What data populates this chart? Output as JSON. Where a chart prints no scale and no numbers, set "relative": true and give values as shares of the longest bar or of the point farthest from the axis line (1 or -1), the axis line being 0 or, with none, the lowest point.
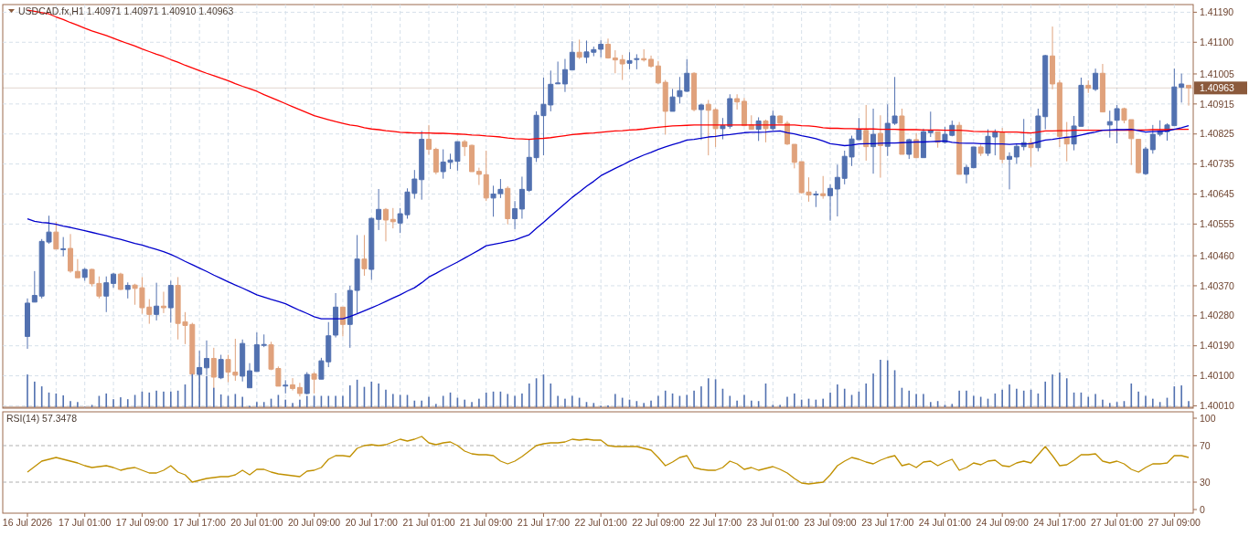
{
  "chart_data": [
    {
      "type": "candlestick",
      "title": "USDCAD.fx,H1 1.40971 1.40971 1.40910 1.40963",
      "tick_labels": "y",
      "grid": true,
      "colors": [
        "#5271b0",
        "#5271b0",
        "#5271b0",
        "#5271b0",
        "#e0a27c",
        "#5271b0",
        "#e0a27c",
        "#e0a27c",
        "#5271b0",
        "#e0a27c",
        "#e0a27c",
        "#5271b0",
        "#5271b0",
        "#e0a27c",
        "#5271b0",
        "#e0a27c",
        "#e0a27c",
        "#e0a27c",
        "#5271b0",
        "#e0a27c",
        "#5271b0",
        "#e0a27c",
        "#e0a27c",
        "#e0a27c",
        "#5271b0",
        "#5271b0",
        "#e0a27c",
        "#5271b0",
        "#e0a27c",
        "#e0a27c",
        "#5271b0",
        "#5271b0",
        "#5271b0",
        "#5271b0",
        "#e0a27c",
        "#e0a27c",
        "#5271b0",
        "#e0a27c",
        "#e0a27c",
        "#5271b0",
        "#e0a27c",
        "#5271b0",
        "#5271b0",
        "#5271b0",
        "#e0a27c",
        "#5271b0",
        "#5271b0",
        "#e0a27c",
        "#5271b0",
        "#5271b0",
        "#e0a27c",
        "#e0a27c",
        "#5271b0",
        "#5271b0",
        "#5271b0",
        "#5271b0",
        "#e0a27c",
        "#e0a27c",
        "#5271b0",
        "#5271b0",
        "#5271b0",
        "#e0a27c",
        "#e0a27c",
        "#e0a27c",
        "#e0a27c",
        "#5271b0",
        "#5271b0",
        "#e0a27c",
        "#5271b0",
        "#5271b0",
        "#5271b0",
        "#5271b0",
        "#5271b0",
        "#5271b0",
        "#5271b0",
        "#5271b0",
        "#5271b0",
        "#e0a27c",
        "#5271b0",
        "#5271b0",
        "#5271b0",
        "#e0a27c",
        "#e0a27c",
        "#e0a27c",
        "#5271b0",
        "#5271b0",
        "#e0a27c",
        "#e0a27c",
        "#e0a27c",
        "#e0a27c",
        "#5271b0",
        "#5271b0",
        "#5271b0",
        "#e0a27c",
        "#5271b0",
        "#e0a27c",
        "#e0a27c",
        "#5271b0",
        "#5271b0",
        "#e0a27c",
        "#e0a27c",
        "#e0a27c",
        "#5271b0",
        "#e0a27c",
        "#5271b0",
        "#e0a27c",
        "#e0a27c",
        "#e0a27c",
        "#e0a27c",
        "#e0a27c",
        "#5271b0",
        "#e0a27c",
        "#5271b0",
        "#5271b0",
        "#5271b0",
        "#5271b0",
        "#5271b0",
        "#e0a27c",
        "#5271b0",
        "#e0a27c",
        "#5271b0",
        "#5271b0",
        "#e0a27c",
        "#5271b0",
        "#e0a27c",
        "#5271b0",
        "#5271b0",
        "#e0a27c",
        "#5271b0",
        "#5271b0",
        "#e0a27c",
        "#5271b0",
        "#5271b0",
        "#e0a27c",
        "#5271b0",
        "#5271b0",
        "#e0a27c",
        "#5271b0",
        "#5271b0",
        "#5271b0",
        "#e0a27c",
        "#5271b0",
        "#5271b0",
        "#e0a27c",
        "#e0a27c",
        "#e0a27c",
        "#5271b0",
        "#5271b0",
        "#e0a27c",
        "#5271b0",
        "#e0a27c",
        "#5271b0",
        "#5271b0",
        "#e0a27c",
        "#e0a27c",
        "#e0a27c",
        "#5271b0",
        "#5271b0",
        "#5271b0",
        "#5271b0",
        "#5271b0",
        "#5271b0",
        "#e0a27c"
      ],
      "categories": [
        null,
        null,
        null,
        null,
        null,
        null,
        null,
        null,
        null,
        null,
        null,
        null,
        null,
        null,
        null,
        null,
        null,
        null,
        null,
        null,
        null,
        null,
        null,
        null,
        null,
        null,
        null,
        null,
        null,
        null,
        null,
        null,
        null,
        null,
        null,
        null,
        null,
        null,
        null,
        null,
        null,
        null,
        null,
        null,
        null,
        null,
        null,
        null,
        null,
        null,
        null,
        null,
        null,
        null,
        null,
        null,
        null,
        null,
        null,
        null,
        null,
        null,
        null,
        null,
        null,
        null,
        null,
        null,
        null,
        null,
        null,
        null,
        null,
        null,
        null,
        null,
        null,
        null,
        null,
        null,
        null,
        null,
        null,
        null,
        null,
        null,
        null,
        null,
        null,
        null,
        null,
        null,
        null,
        null,
        null,
        null,
        null,
        null,
        null,
        null,
        null,
        null,
        null,
        null,
        null,
        null,
        null,
        null,
        null,
        null,
        null,
        null,
        null,
        null,
        null,
        null,
        null,
        null,
        null,
        null,
        null,
        null,
        null,
        null,
        null,
        null,
        null,
        null,
        null,
        null,
        null,
        null,
        null,
        null,
        null,
        null,
        null,
        null,
        null,
        null,
        null,
        null,
        null,
        null,
        null,
        null,
        null,
        null,
        null,
        null,
        null,
        null,
        null,
        null,
        null,
        null,
        null,
        null,
        null,
        null,
        null,
        null,
        null
      ],
      "ylim": [
        1.40003,
        1.41213
      ],
      "yticks": [
        {
          "value": 1.4119,
          "label": "1.41190"
        },
        {
          "value": 1.411,
          "label": "1.41100"
        },
        1.41005,
        1.40915,
        1.40825,
        1.40735,
        1.40645,
        1.40555,
        {
          "value": 1.4046,
          "label": "1.40460"
        },
        {
          "value": 1.4037,
          "label": "1.40370"
        },
        {
          "value": 1.4028,
          "label": "1.40280"
        },
        {
          "value": 1.4019,
          "label": "1.40190"
        },
        {
          "value": 1.401,
          "label": "1.40100"
        },
        {
          "value": 1.4001,
          "label": "1.40010"
        }
      ],
      "ref_lines": [
        {
          "axis": "y",
          "value": 1.40963,
          "label": "1.40963",
          "color": "#8b5a3c"
        }
      ],
      "ohlc": [
        [
          1.40218,
          1.40332,
          1.40181,
          1.40318
        ],
        [
          1.40321,
          1.40414,
          1.40321,
          1.40341
        ],
        [
          1.40339,
          1.4051,
          1.40332,
          1.40503
        ],
        [
          1.40501,
          1.4058,
          1.40496,
          1.40531
        ],
        [
          1.40531,
          1.40562,
          1.4048,
          1.4048
        ],
        [
          1.40479,
          1.40516,
          1.40458,
          1.40481
        ],
        [
          1.40482,
          1.40525,
          1.40409,
          1.40414
        ],
        [
          1.40413,
          1.4045,
          1.40394,
          1.40394
        ],
        [
          1.40395,
          1.40423,
          1.40385,
          1.40419
        ],
        [
          1.40419,
          1.40421,
          1.40368,
          1.40376
        ],
        [
          1.40377,
          1.40398,
          1.40332,
          1.40339
        ],
        [
          1.40339,
          1.40398,
          1.40291,
          1.40379
        ],
        [
          1.40377,
          1.40409,
          1.40364,
          1.40405
        ],
        [
          1.40405,
          1.40409,
          1.40357,
          1.40359
        ],
        [
          1.40359,
          1.4038,
          1.40332,
          1.40371
        ],
        [
          1.40372,
          1.40376,
          1.40313,
          1.40362
        ],
        [
          1.40364,
          1.40396,
          1.40286,
          1.40304
        ],
        [
          1.40306,
          1.4033,
          1.40256,
          1.40284
        ],
        [
          1.40284,
          1.40379,
          1.40266,
          1.40309
        ],
        [
          1.40309,
          1.40352,
          1.40288,
          1.40304
        ],
        [
          1.40304,
          1.40385,
          1.40259,
          1.40371
        ],
        [
          1.40371,
          1.40396,
          1.40209,
          1.40257
        ],
        [
          1.40262,
          1.40291,
          1.40195,
          1.40251
        ],
        [
          1.40254,
          1.40259,
          1.40104,
          1.40105
        ],
        [
          1.40104,
          1.40175,
          1.40102,
          1.40125
        ],
        [
          1.40124,
          1.40206,
          1.40102,
          1.40152
        ],
        [
          1.40152,
          1.40184,
          1.40062,
          1.40096
        ],
        [
          1.40094,
          1.40163,
          1.4009,
          1.40149
        ],
        [
          1.40149,
          1.40163,
          1.40081,
          1.40111
        ],
        [
          1.40111,
          1.40211,
          1.40085,
          1.40102
        ],
        [
          1.40099,
          1.40209,
          1.40083,
          1.40197
        ],
        [
          1.40064,
          1.40138,
          1.40064,
          1.40115
        ],
        [
          1.40113,
          1.4023,
          1.40113,
          1.40193
        ],
        [
          1.40192,
          1.40224,
          1.40186,
          1.40194
        ],
        [
          1.40193,
          1.40202,
          1.40117,
          1.4012
        ],
        [
          1.40122,
          1.40128,
          1.40069,
          1.40069
        ],
        [
          1.40071,
          1.40087,
          1.40047,
          1.40072
        ],
        [
          1.40073,
          1.40093,
          1.40056,
          1.40062
        ],
        [
          1.40065,
          1.40079,
          1.40038,
          1.40047
        ],
        [
          1.40047,
          1.40111,
          1.40044,
          1.40104
        ],
        [
          1.40106,
          1.40111,
          1.40047,
          1.4009
        ],
        [
          1.4009,
          1.40154,
          1.4009,
          1.40145
        ],
        [
          1.40142,
          1.40261,
          1.40126,
          1.4022
        ],
        [
          1.40222,
          1.40348,
          1.40215,
          1.40306
        ],
        [
          1.40306,
          1.40306,
          1.40218,
          1.40254
        ],
        [
          1.40254,
          1.4037,
          1.40184,
          1.40356
        ],
        [
          1.40356,
          1.40522,
          1.40286,
          1.4045
        ],
        [
          1.4045,
          1.40522,
          1.404,
          1.40421
        ],
        [
          1.40419,
          1.40574,
          1.40388,
          1.40572
        ],
        [
          1.40569,
          1.4066,
          1.40537,
          1.40599
        ],
        [
          1.40599,
          1.40603,
          1.40503,
          1.40567
        ],
        [
          1.40569,
          1.40603,
          1.40542,
          1.40562
        ],
        [
          1.40558,
          1.40603,
          1.40528,
          1.40586
        ],
        [
          1.40583,
          1.40662,
          1.40571,
          1.40651
        ],
        [
          1.40647,
          1.40717,
          1.40631,
          1.4069
        ],
        [
          1.40688,
          1.40834,
          1.40628,
          1.40809
        ],
        [
          1.40809,
          1.40852,
          1.40763,
          1.40779
        ],
        [
          1.40779,
          1.40784,
          1.40704,
          1.40711
        ],
        [
          1.40712,
          1.40779,
          1.40691,
          1.40741
        ],
        [
          1.4074,
          1.40766,
          1.4072,
          1.40747
        ],
        [
          1.40743,
          1.40802,
          1.40715,
          1.40802
        ],
        [
          1.40802,
          1.40807,
          1.40759,
          1.40787
        ],
        [
          1.40791,
          1.40793,
          1.40712,
          1.40712
        ],
        [
          1.40713,
          1.40724,
          1.40672,
          1.40704
        ],
        [
          1.40703,
          1.40775,
          1.40624,
          1.40633
        ],
        [
          1.40633,
          1.4067,
          1.40577,
          1.40645
        ],
        [
          1.40646,
          1.4069,
          1.40633,
          1.40659
        ],
        [
          1.40662,
          1.40668,
          1.40554,
          1.40571
        ],
        [
          1.40571,
          1.40624,
          1.4054,
          1.40601
        ],
        [
          1.406,
          1.40697,
          1.40571,
          1.40659
        ],
        [
          1.40656,
          1.40811,
          1.40651,
          1.40755
        ],
        [
          1.40754,
          1.40893,
          1.40741,
          1.40881
        ],
        [
          1.4088,
          1.40994,
          1.40761,
          1.40914
        ],
        [
          1.40912,
          1.41015,
          1.40893,
          1.40974
        ],
        [
          1.40976,
          1.41042,
          1.40975,
          1.40978
        ],
        [
          1.40975,
          1.4105,
          1.40951,
          1.41018
        ],
        [
          1.41017,
          1.41103,
          1.41017,
          1.4107
        ],
        [
          1.4107,
          1.41108,
          1.4105,
          1.41055
        ],
        [
          1.41055,
          1.41105,
          1.41037,
          1.41071
        ],
        [
          1.4107,
          1.41087,
          1.41058,
          1.41078
        ],
        [
          1.41079,
          1.41106,
          1.41055,
          1.41094
        ],
        [
          1.41094,
          1.41111,
          1.41051,
          1.41053
        ],
        [
          1.41053,
          1.41076,
          1.41007,
          1.41047
        ],
        [
          1.41048,
          1.41062,
          1.40987,
          1.41035
        ],
        [
          1.41037,
          1.4107,
          1.41019,
          1.41045
        ],
        [
          1.41049,
          1.41064,
          1.41019,
          1.41051
        ],
        [
          1.41051,
          1.41079,
          1.41042,
          1.41047
        ],
        [
          1.41049,
          1.4106,
          1.41024,
          1.41028
        ],
        [
          1.41029,
          1.41044,
          1.40975,
          1.40978
        ],
        [
          1.4098,
          1.40987,
          1.40823,
          1.40893
        ],
        [
          1.40893,
          1.4096,
          1.40893,
          1.40936
        ],
        [
          1.40937,
          1.40996,
          1.40916,
          1.40955
        ],
        [
          1.40953,
          1.41049,
          1.40951,
          1.41007
        ],
        [
          1.41007,
          1.4101,
          1.40893,
          1.40898
        ],
        [
          1.40898,
          1.40916,
          1.40807,
          1.40912
        ],
        [
          1.40914,
          1.40927,
          1.40761,
          1.40896
        ],
        [
          1.40898,
          1.40902,
          1.40786,
          1.40841
        ],
        [
          1.40841,
          1.40873,
          1.40809,
          1.4085
        ],
        [
          1.40848,
          1.40944,
          1.40841,
          1.40931
        ],
        [
          1.40931,
          1.40944,
          1.40898,
          1.40921
        ],
        [
          1.40923,
          1.40933,
          1.4085,
          1.4085
        ],
        [
          1.40852,
          1.40881,
          1.40839,
          1.40839
        ],
        [
          1.40839,
          1.40875,
          1.40804,
          1.40864
        ],
        [
          1.40864,
          1.40868,
          1.408,
          1.40841
        ],
        [
          1.40841,
          1.40895,
          1.40836,
          1.40879
        ],
        [
          1.40879,
          1.40881,
          1.40857,
          1.40857
        ],
        [
          1.40857,
          1.40864,
          1.40792,
          1.40795
        ],
        [
          1.40794,
          1.40794,
          1.40722,
          1.4074
        ],
        [
          1.40742,
          1.40742,
          1.40647,
          1.40649
        ],
        [
          1.40651,
          1.40695,
          1.40622,
          1.40642
        ],
        [
          1.40643,
          1.40654,
          1.40606,
          1.40645
        ],
        [
          1.40646,
          1.40699,
          1.40631,
          1.4064
        ],
        [
          1.4064,
          1.40674,
          1.40565,
          1.40662
        ],
        [
          1.4066,
          1.40733,
          1.40578,
          1.40695
        ],
        [
          1.40692,
          1.40775,
          1.40674,
          1.40758
        ],
        [
          1.40756,
          1.4082,
          1.40729,
          1.4081
        ],
        [
          1.40808,
          1.40873,
          1.40807,
          1.40839
        ],
        [
          1.40836,
          1.40912,
          1.40745,
          1.40787
        ],
        [
          1.40787,
          1.40901,
          1.40706,
          1.40824
        ],
        [
          1.40827,
          1.40881,
          1.40694,
          1.4079
        ],
        [
          1.40788,
          1.40914,
          1.40759,
          1.40857
        ],
        [
          1.40857,
          1.40996,
          1.40852,
          1.40879
        ],
        [
          1.40879,
          1.40901,
          1.40764,
          1.40764
        ],
        [
          1.40764,
          1.40811,
          1.4075,
          1.40808
        ],
        [
          1.40808,
          1.40827,
          1.40754,
          1.40754
        ],
        [
          1.40754,
          1.40841,
          1.40754,
          1.40832
        ],
        [
          1.40829,
          1.40892,
          1.40816,
          1.40836
        ],
        [
          1.40832,
          1.40832,
          1.40784,
          1.408
        ],
        [
          1.408,
          1.40846,
          1.40796,
          1.40824
        ],
        [
          1.40821,
          1.40865,
          1.40818,
          1.40851
        ],
        [
          1.40851,
          1.40861,
          1.40704,
          1.40704
        ],
        [
          1.40704,
          1.40733,
          1.40677,
          1.40725
        ],
        [
          1.40724,
          1.40786,
          1.40722,
          1.40786
        ],
        [
          1.40786,
          1.40793,
          1.40759,
          1.40767
        ],
        [
          1.40767,
          1.40839,
          1.40759,
          1.40818
        ],
        [
          1.40816,
          1.40839,
          1.40761,
          1.40831
        ],
        [
          1.40831,
          1.40843,
          1.40737,
          1.40749
        ],
        [
          1.40749,
          1.4077,
          1.40659,
          1.40758
        ],
        [
          1.40756,
          1.40797,
          1.40736,
          1.40788
        ],
        [
          1.40787,
          1.4087,
          1.40776,
          1.40799
        ],
        [
          1.40799,
          1.40813,
          1.40727,
          1.40784
        ],
        [
          1.40784,
          1.40901,
          1.40773,
          1.40879
        ],
        [
          1.40877,
          1.41062,
          1.40839,
          1.4106
        ],
        [
          1.41059,
          1.41147,
          1.40959,
          1.40975
        ],
        [
          1.40978,
          1.40987,
          1.40786,
          1.40818
        ],
        [
          1.40816,
          1.40861,
          1.40743,
          1.40795
        ],
        [
          1.40795,
          1.40879,
          1.40776,
          1.40849
        ],
        [
          1.40848,
          1.40994,
          1.40848,
          1.40971
        ],
        [
          1.40971,
          1.40986,
          1.40948,
          1.40962
        ],
        [
          1.40959,
          1.41021,
          1.40954,
          1.41007
        ],
        [
          1.41007,
          1.41035,
          1.40891,
          1.40891
        ],
        [
          1.40852,
          1.40895,
          1.40814,
          1.40862
        ],
        [
          1.40866,
          1.40912,
          1.40797,
          1.40901
        ],
        [
          1.40901,
          1.40904,
          1.40857,
          1.40866
        ],
        [
          1.40868,
          1.40868,
          1.40732,
          1.40811
        ],
        [
          1.40809,
          1.40809,
          1.40706,
          1.40709
        ],
        [
          1.40706,
          1.40786,
          1.40702,
          1.4078
        ],
        [
          1.40778,
          1.40852,
          1.40766,
          1.40824
        ],
        [
          1.40824,
          1.40866,
          1.40818,
          1.40834
        ],
        [
          1.40832,
          1.40857,
          1.40805,
          1.40852
        ],
        [
          1.4085,
          1.41021,
          1.4085,
          1.40966
        ],
        [
          1.40965,
          1.41006,
          1.40919,
          1.40975
        ],
        [
          1.40971,
          1.40971,
          1.4091,
          1.40963
        ]
      ],
      "series": [
        {
          "type": "line",
          "color": "#ff0000",
          "values": [
            1.41196,
            1.41193,
            1.41189,
            1.41185,
            1.41176,
            1.41168,
            1.41159,
            1.41151,
            1.41142,
            1.41134,
            1.41127,
            1.4112,
            1.41112,
            1.41104,
            1.41096,
            1.41089,
            1.4108,
            1.41072,
            1.41064,
            1.41057,
            1.41048,
            1.4104,
            1.41031,
            1.41023,
            1.41015,
            1.41007,
            1.41,
            1.40992,
            1.40985,
            1.40976,
            1.40968,
            1.40961,
            1.40953,
            1.40943,
            1.40934,
            1.40925,
            1.40916,
            1.40907,
            1.40898,
            1.40889,
            1.4088,
            1.40874,
            1.40868,
            1.40862,
            1.40857,
            1.40852,
            1.40849,
            1.40844,
            1.4084,
            1.40838,
            1.40835,
            1.40833,
            1.4083,
            1.40829,
            1.40828,
            1.40828,
            1.40828,
            1.40827,
            1.40827,
            1.40826,
            1.40825,
            1.40824,
            1.40822,
            1.40821,
            1.40819,
            1.40818,
            1.40816,
            1.40813,
            1.40811,
            1.4081,
            1.40809,
            1.40811,
            1.40812,
            1.40814,
            1.40817,
            1.4082,
            1.40823,
            1.40825,
            1.40827,
            1.40828,
            1.4083,
            1.40832,
            1.40834,
            1.40835,
            1.40837,
            1.40838,
            1.4084,
            1.40843,
            1.40845,
            1.40847,
            1.40849,
            1.4085,
            1.40851,
            1.40852,
            1.40852,
            1.40852,
            1.40852,
            1.40852,
            1.40852,
            1.40852,
            1.40852,
            1.40852,
            1.40852,
            1.40852,
            1.40852,
            1.40852,
            1.40852,
            1.40852,
            1.4085,
            1.40849,
            1.40847,
            1.40844,
            1.40842,
            1.40842,
            1.40841,
            1.40841,
            1.4084,
            1.4084,
            1.4084,
            1.40839,
            1.40839,
            1.40839,
            1.40838,
            1.40838,
            1.40838,
            1.40837,
            1.40837,
            1.40837,
            1.40836,
            1.40836,
            1.40836,
            1.40835,
            1.40833,
            1.40832,
            1.40832,
            1.40832,
            1.40831,
            1.40831,
            1.40831,
            1.40829,
            1.40828,
            1.40831,
            1.40834,
            1.40834,
            1.40835,
            1.40835,
            1.40836,
            1.40836,
            1.40836,
            1.40836,
            1.40836,
            1.40836,
            1.40836,
            1.40836,
            1.40836,
            1.40837,
            1.40837,
            1.40838,
            1.40838,
            1.40838,
            1.40839,
            1.40839,
            1.40839
          ]
        },
        {
          "type": "line",
          "color": "#0000cc",
          "values": [
            1.40571,
            1.40563,
            1.4056,
            1.40558,
            1.40554,
            1.40549,
            1.40545,
            1.4054,
            1.40535,
            1.4053,
            1.40525,
            1.4052,
            1.40514,
            1.40509,
            1.40503,
            1.40497,
            1.40492,
            1.40485,
            1.40479,
            1.40472,
            1.40464,
            1.40454,
            1.40443,
            1.40433,
            1.40423,
            1.40413,
            1.40402,
            1.40392,
            1.40382,
            1.40372,
            1.40363,
            1.40353,
            1.40343,
            1.40336,
            1.40329,
            1.40323,
            1.40316,
            1.40306,
            1.40296,
            1.40287,
            1.40277,
            1.40271,
            1.40271,
            1.40271,
            1.40271,
            1.40278,
            1.40286,
            1.40295,
            1.40304,
            1.40313,
            1.40323,
            1.40333,
            1.40343,
            1.40354,
            1.40364,
            1.40379,
            1.40396,
            1.40407,
            1.40419,
            1.4043,
            1.40441,
            1.40453,
            1.40465,
            1.40477,
            1.4049,
            1.40494,
            1.40498,
            1.40503,
            1.40507,
            1.40515,
            1.40523,
            1.40542,
            1.4056,
            1.40579,
            1.40598,
            1.40616,
            1.40635,
            1.40651,
            1.40668,
            1.40683,
            1.407,
            1.40711,
            1.40722,
            1.40732,
            1.40743,
            1.40753,
            1.40762,
            1.4077,
            1.40779,
            1.40786,
            1.40793,
            1.40799,
            1.40807,
            1.40809,
            1.40812,
            1.40816,
            1.40818,
            1.40821,
            1.40823,
            1.40826,
            1.40829,
            1.4083,
            1.4083,
            1.40831,
            1.40833,
            1.40834,
            1.40829,
            1.40825,
            1.4082,
            1.40816,
            1.40811,
            1.40804,
            1.40796,
            1.40793,
            1.4079,
            1.40792,
            1.40795,
            1.40796,
            1.40796,
            1.40797,
            1.40798,
            1.40798,
            1.40799,
            1.408,
            1.40801,
            1.40801,
            1.40802,
            1.40803,
            1.40804,
            1.408,
            1.40798,
            1.40797,
            1.40797,
            1.40796,
            1.40796,
            1.40795,
            1.40795,
            1.40794,
            1.40795,
            1.40795,
            1.40796,
            1.40801,
            1.40807,
            1.40809,
            1.40812,
            1.40815,
            1.40817,
            1.40822,
            1.40827,
            1.40831,
            1.40836,
            1.40837,
            1.40838,
            1.40838,
            1.40839,
            1.40835,
            1.40831,
            1.40832,
            1.40833,
            1.40834,
            1.40839,
            1.40844,
            1.4085
          ]
        }
      ]
    },
    {
      "type": "bar",
      "relative": true,
      "tick_labels": false,
      "color": "#5271b0",
      "categories": [
        null,
        null,
        null,
        null,
        null,
        null,
        null,
        null,
        null,
        null,
        null,
        null,
        null,
        null,
        null,
        null,
        null,
        null,
        null,
        null,
        null,
        null,
        null,
        null,
        null,
        null,
        null,
        null,
        null,
        null,
        null,
        null,
        null,
        null,
        null,
        null,
        null,
        null,
        null,
        null,
        null,
        null,
        null,
        null,
        null,
        null,
        null,
        null,
        null,
        null,
        null,
        null,
        null,
        null,
        null,
        null,
        null,
        null,
        null,
        null,
        null,
        null,
        null,
        null,
        null,
        null,
        null,
        null,
        null,
        null,
        null,
        null,
        null,
        null,
        null,
        null,
        null,
        null,
        null,
        null,
        null,
        null,
        null,
        null,
        null,
        null,
        null,
        null,
        null,
        null,
        null,
        null,
        null,
        null,
        null,
        null,
        null,
        null,
        null,
        null,
        null,
        null,
        null,
        null,
        null,
        null,
        null,
        null,
        null,
        null,
        null,
        null,
        null,
        null,
        null,
        null,
        null,
        null,
        null,
        null,
        null,
        null,
        null,
        null,
        null,
        null,
        null,
        null,
        null,
        null,
        null,
        null,
        null,
        null,
        null,
        null,
        null,
        null,
        null,
        null,
        null,
        null,
        null,
        null,
        null,
        null,
        null,
        null,
        null,
        null,
        null,
        null,
        null,
        null,
        null,
        null,
        null,
        null,
        null,
        null,
        null,
        null,
        null
      ],
      "values": [
        0.69,
        0.54,
        0.44,
        0.31,
        0.29,
        0.25,
        0.13,
        0.11,
        0.01,
        0.05,
        0.24,
        0.29,
        0.17,
        0.21,
        0.17,
        0.26,
        0.33,
        0.31,
        0.35,
        0.33,
        0.33,
        0.35,
        0.48,
        0.7,
        0.7,
        0.66,
        0.41,
        0.27,
        0.24,
        0.28,
        0.22,
        0.03,
        0.11,
        0.11,
        0.18,
        0.26,
        0.16,
        0.09,
        0.16,
        0.24,
        0.24,
        0.24,
        0.24,
        0.24,
        0.24,
        0.46,
        0.58,
        0.43,
        0.54,
        0.5,
        0.37,
        0.28,
        0.26,
        0.26,
        0.14,
        0.14,
        0.22,
        0.07,
        0.24,
        0.31,
        0.2,
        0.16,
        0.11,
        0.18,
        0.31,
        0.33,
        0.33,
        0.28,
        0.24,
        0.29,
        0.5,
        0.61,
        0.69,
        0.5,
        0.24,
        0.18,
        0.24,
        0.2,
        0.11,
        0.09,
        0.03,
        0.04,
        0.28,
        0.2,
        0.16,
        0.13,
        0.09,
        0.14,
        0.24,
        0.35,
        0.29,
        0.24,
        0.26,
        0.35,
        0.44,
        0.61,
        0.59,
        0.39,
        0.24,
        0.14,
        0.26,
        0.14,
        0.13,
        0.5,
        0.05,
        0.05,
        0.22,
        0.29,
        0.16,
        0.18,
        0.16,
        0.18,
        0.31,
        0.48,
        0.39,
        0.26,
        0.33,
        0.5,
        0.71,
        1,
        0.99,
        0.78,
        0.41,
        0.35,
        0.28,
        0.28,
        0.11,
        0.13,
        0.05,
        0.07,
        0.35,
        0.35,
        0.24,
        0.22,
        0.18,
        0.29,
        0.37,
        0.48,
        0.39,
        0.35,
        0.37,
        0.29,
        0.54,
        0.69,
        0.73,
        0.61,
        0.31,
        0.31,
        0.22,
        0.28,
        0.16,
        0.09,
        0.11,
        0.13,
        0.5,
        0.33,
        0.24,
        0.18,
        0.11,
        0.2,
        0.44,
        0.46,
        0.13
      ]
    },
    {
      "type": "line",
      "title": "RSI(14) 57.3478",
      "color": "#c09000",
      "categories": [
        "16 Jul 2026",
        null,
        null,
        null,
        null,
        null,
        null,
        null,
        "17 Jul 01:00",
        null,
        null,
        null,
        null,
        null,
        null,
        null,
        "17 Jul 09:00",
        null,
        null,
        null,
        null,
        null,
        null,
        null,
        "17 Jul 17:00",
        null,
        null,
        null,
        null,
        null,
        null,
        null,
        "20 Jul 01:00",
        null,
        null,
        null,
        null,
        null,
        null,
        null,
        "20 Jul 09:00",
        null,
        null,
        null,
        null,
        null,
        null,
        null,
        "20 Jul 17:00",
        null,
        null,
        null,
        null,
        null,
        null,
        null,
        "21 Jul 01:00",
        null,
        null,
        null,
        null,
        null,
        null,
        null,
        "21 Jul 09:00",
        null,
        null,
        null,
        null,
        null,
        null,
        null,
        "21 Jul 17:00",
        null,
        null,
        null,
        null,
        null,
        null,
        null,
        "22 Jul 01:00",
        null,
        null,
        null,
        null,
        null,
        null,
        null,
        "22 Jul 09:00",
        null,
        null,
        null,
        null,
        null,
        null,
        null,
        "22 Jul 17:00",
        null,
        null,
        null,
        null,
        null,
        null,
        null,
        "23 Jul 01:00",
        null,
        null,
        null,
        null,
        null,
        null,
        null,
        "23 Jul 09:00",
        null,
        null,
        null,
        null,
        null,
        null,
        null,
        "23 Jul 17:00",
        null,
        null,
        null,
        null,
        null,
        null,
        null,
        "24 Jul 01:00",
        null,
        null,
        null,
        null,
        null,
        null,
        null,
        "24 Jul 09:00",
        null,
        null,
        null,
        null,
        null,
        null,
        null,
        "24 Jul 17:00",
        null,
        null,
        null,
        null,
        null,
        null,
        null,
        "27 Jul 01:00",
        null,
        null,
        null,
        null,
        null,
        null,
        null,
        "27 Jul 09:00",
        null,
        null
      ],
      "ylim": [
        -4,
        107
      ],
      "yticks": [
        0,
        30,
        70,
        100
      ],
      "ref_lines": [
        {
          "axis": "y",
          "value": 70,
          "color": "#b0b0b0",
          "line_style": "dashed"
        },
        {
          "axis": "y",
          "value": 30,
          "color": "#b0b0b0",
          "line_style": "dashed"
        }
      ],
      "values": [
        41,
        47,
        53,
        55,
        57,
        55,
        53,
        51,
        48,
        46,
        47,
        48,
        46,
        43,
        45,
        46,
        43,
        40,
        40,
        43,
        48,
        41,
        38,
        30,
        32,
        34,
        35,
        36,
        36,
        38,
        43,
        38,
        44,
        44,
        41,
        39,
        38,
        37,
        36,
        42,
        43,
        46,
        55,
        59,
        59,
        58,
        67,
        70,
        71,
        70,
        71,
        74,
        77,
        75,
        77,
        80,
        73,
        71,
        73,
        74,
        70,
        64,
        61,
        60,
        60,
        59,
        53,
        50,
        53,
        58,
        64,
        70,
        72,
        73,
        73,
        74,
        77,
        76,
        77,
        76,
        76,
        70,
        69,
        69,
        69,
        69,
        67,
        65,
        57,
        48,
        52,
        57,
        59,
        46,
        44,
        43,
        43,
        46,
        53,
        50,
        44,
        46,
        43,
        45,
        47,
        44,
        40,
        34,
        29,
        28,
        29,
        30,
        38,
        48,
        53,
        57,
        55,
        52,
        50,
        54,
        57,
        59,
        48,
        50,
        46,
        52,
        53,
        48,
        52,
        55,
        43,
        46,
        51,
        49,
        53,
        54,
        48,
        47,
        51,
        53,
        51,
        60,
        69,
        59,
        48,
        49,
        54,
        60,
        60,
        61,
        53,
        51,
        53,
        50,
        44,
        41,
        46,
        50,
        50,
        51,
        59,
        59,
        57
      ]
    }
  ]
}
